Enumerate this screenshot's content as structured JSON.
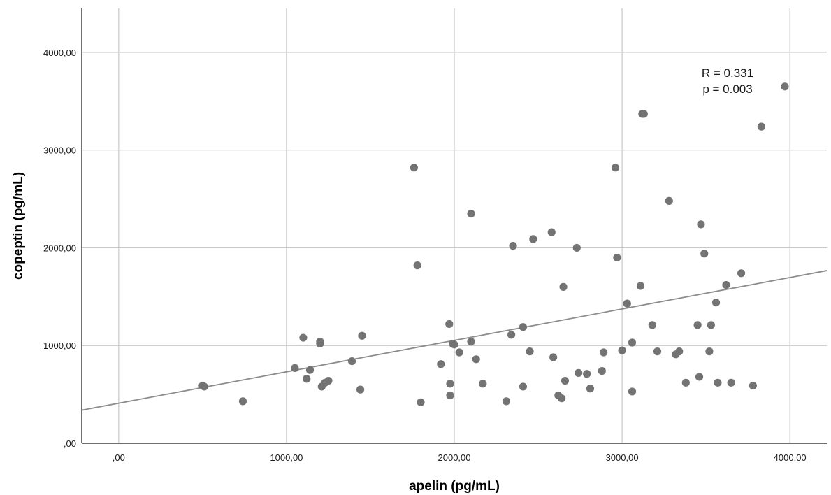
{
  "chart_data": {
    "type": "scatter",
    "xlabel": "apelin (pg/mL)",
    "ylabel": "copeptin (pg/mL)",
    "xlim": [
      -220,
      4220
    ],
    "ylim": [
      0,
      4450
    ],
    "x_ticks": [
      0,
      1000,
      2000,
      3000,
      4000
    ],
    "x_tick_labels": [
      ",00",
      "1000,00",
      "2000,00",
      "3000,00",
      "4000,00"
    ],
    "y_ticks": [
      0,
      1000,
      2000,
      3000,
      4000
    ],
    "y_tick_labels": [
      ",00",
      "1000,00",
      "2000,00",
      "3000,00",
      "4000,00"
    ],
    "grid": true,
    "annotations": [
      "R = 0.331",
      "p = 0.003"
    ],
    "fit_line": {
      "type": "linear",
      "intercept": 410,
      "slope": 0.3215
    },
    "points": [
      [
        500,
        590
      ],
      [
        510,
        580
      ],
      [
        740,
        430
      ],
      [
        1050,
        770
      ],
      [
        1100,
        1080
      ],
      [
        1120,
        660
      ],
      [
        1140,
        750
      ],
      [
        1200,
        1040
      ],
      [
        1200,
        1020
      ],
      [
        1210,
        580
      ],
      [
        1230,
        620
      ],
      [
        1250,
        640
      ],
      [
        1390,
        840
      ],
      [
        1440,
        550
      ],
      [
        1450,
        1100
      ],
      [
        1760,
        2820
      ],
      [
        1780,
        1820
      ],
      [
        1800,
        420
      ],
      [
        1920,
        810
      ],
      [
        1970,
        1220
      ],
      [
        1975,
        610
      ],
      [
        1975,
        490
      ],
      [
        1990,
        1020
      ],
      [
        2000,
        1010
      ],
      [
        2030,
        930
      ],
      [
        2100,
        2350
      ],
      [
        2100,
        1040
      ],
      [
        2130,
        860
      ],
      [
        2170,
        610
      ],
      [
        2310,
        430
      ],
      [
        2340,
        1110
      ],
      [
        2350,
        2020
      ],
      [
        2410,
        1190
      ],
      [
        2410,
        580
      ],
      [
        2450,
        940
      ],
      [
        2470,
        2090
      ],
      [
        2580,
        2160
      ],
      [
        2590,
        880
      ],
      [
        2620,
        490
      ],
      [
        2640,
        460
      ],
      [
        2650,
        1600
      ],
      [
        2660,
        640
      ],
      [
        2730,
        2000
      ],
      [
        2740,
        720
      ],
      [
        2790,
        710
      ],
      [
        2810,
        560
      ],
      [
        2880,
        740
      ],
      [
        2890,
        930
      ],
      [
        2960,
        2820
      ],
      [
        2970,
        1900
      ],
      [
        3000,
        950
      ],
      [
        3030,
        1430
      ],
      [
        3060,
        1030
      ],
      [
        3060,
        530
      ],
      [
        3110,
        1610
      ],
      [
        3120,
        3370
      ],
      [
        3130,
        3370
      ],
      [
        3180,
        1210
      ],
      [
        3210,
        940
      ],
      [
        3280,
        2480
      ],
      [
        3320,
        910
      ],
      [
        3340,
        940
      ],
      [
        3380,
        620
      ],
      [
        3450,
        1210
      ],
      [
        3460,
        680
      ],
      [
        3470,
        2240
      ],
      [
        3490,
        1940
      ],
      [
        3520,
        940
      ],
      [
        3530,
        1210
      ],
      [
        3560,
        1440
      ],
      [
        3570,
        620
      ],
      [
        3620,
        1620
      ],
      [
        3650,
        620
      ],
      [
        3710,
        1740
      ],
      [
        3780,
        590
      ],
      [
        3830,
        3240
      ],
      [
        3970,
        3650
      ]
    ]
  },
  "colors": {
    "point": "#737373",
    "fit_line": "#8c8c8c",
    "grid": "#c8c8c8",
    "axis": "#404040"
  }
}
